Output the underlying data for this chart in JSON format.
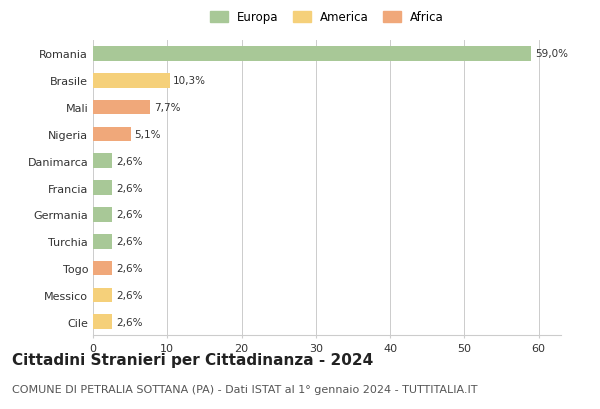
{
  "categories": [
    "Romania",
    "Brasile",
    "Mali",
    "Nigeria",
    "Danimarca",
    "Francia",
    "Germania",
    "Turchia",
    "Togo",
    "Messico",
    "Cile"
  ],
  "values": [
    59.0,
    10.3,
    7.7,
    5.1,
    2.6,
    2.6,
    2.6,
    2.6,
    2.6,
    2.6,
    2.6
  ],
  "labels": [
    "59,0%",
    "10,3%",
    "7,7%",
    "5,1%",
    "2,6%",
    "2,6%",
    "2,6%",
    "2,6%",
    "2,6%",
    "2,6%",
    "2,6%"
  ],
  "colors": [
    "#a8c897",
    "#f5d07a",
    "#f0a87a",
    "#f0a87a",
    "#a8c897",
    "#a8c897",
    "#a8c897",
    "#a8c897",
    "#f0a87a",
    "#f5d07a",
    "#f5d07a"
  ],
  "legend_labels": [
    "Europa",
    "America",
    "Africa"
  ],
  "legend_colors": [
    "#a8c897",
    "#f5d07a",
    "#f0a87a"
  ],
  "title": "Cittadini Stranieri per Cittadinanza - 2024",
  "subtitle": "COMUNE DI PETRALIA SOTTANA (PA) - Dati ISTAT al 1° gennaio 2024 - TUTTITALIA.IT",
  "xlim": [
    0,
    63
  ],
  "xticks": [
    0,
    10,
    20,
    30,
    40,
    50,
    60
  ],
  "background_color": "#ffffff",
  "grid_color": "#cccccc",
  "bar_height": 0.55,
  "title_fontsize": 11,
  "subtitle_fontsize": 8
}
